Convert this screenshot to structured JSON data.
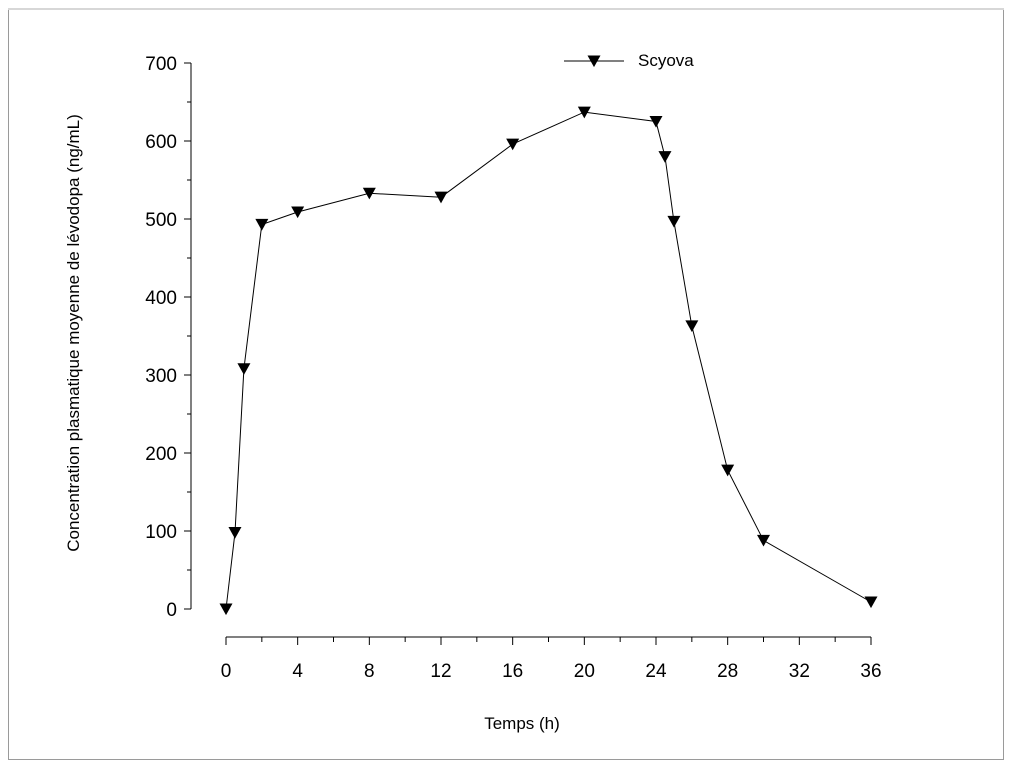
{
  "chart_data": {
    "type": "line",
    "xlabel": "Temps (h)",
    "ylabel": "Concentration plasmatique moyenne de lévodopa (ng/mL)",
    "xlim": [
      0,
      36
    ],
    "ylim": [
      0,
      700
    ],
    "x_ticks": [
      "0",
      "4",
      "8",
      "12",
      "16",
      "20",
      "24",
      "28",
      "32",
      "36"
    ],
    "y_ticks": [
      "0",
      "100",
      "200",
      "300",
      "400",
      "500",
      "600",
      "700"
    ],
    "grid": false,
    "legend_position": "top",
    "marker": "triangle-down",
    "series": [
      {
        "name": "Scyova",
        "color": "#000000",
        "x": [
          0,
          0.5,
          1,
          2,
          4,
          8,
          12,
          16,
          20,
          24,
          24.5,
          25,
          26,
          28,
          30,
          36
        ],
        "y": [
          0,
          98,
          308,
          493,
          509,
          533,
          528,
          596,
          637,
          625,
          580,
          497,
          363,
          178,
          88,
          9
        ]
      }
    ]
  }
}
